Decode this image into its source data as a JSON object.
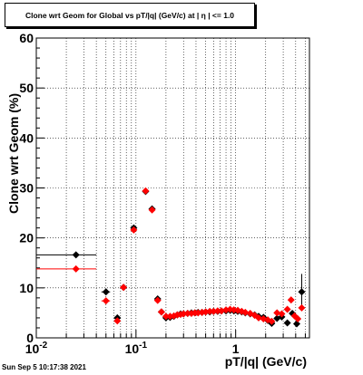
{
  "title": "Clone wrt Geom for Global vs pT/|q| (GeV/c) at |  η | <= 1.0",
  "timestamp": "Sun Sep  5 10:17:38 2021",
  "chart_data": {
    "type": "scatter",
    "title": "Clone wrt Geom for Global vs pT/|q| (GeV/c) at |  η | <= 1.0",
    "xlabel": "pT/|q| (GeV/c)",
    "ylabel": "Clone wrt Geom (%)",
    "xscale": "log",
    "xlim": [
      0.01,
      5.5
    ],
    "ylim": [
      0,
      60
    ],
    "grid": true,
    "x_tick_labels": [
      "10^-2",
      "10^-1",
      "1"
    ],
    "y_tick_labels": [
      "0",
      "10",
      "20",
      "30",
      "40",
      "50",
      "60"
    ],
    "series": [
      {
        "color": "#000000",
        "marker": "diamond",
        "points": [
          {
            "x": 0.025,
            "y": 16.6,
            "xerr": [
              0.01,
              0.04
            ]
          },
          {
            "x": 0.05,
            "y": 9.2,
            "xerr": [
              0.045,
              0.055
            ]
          },
          {
            "x": 0.065,
            "y": 4.0
          },
          {
            "x": 0.075,
            "y": 10.1
          },
          {
            "x": 0.095,
            "y": 22.0,
            "xerr": [
              0.09,
              0.1
            ]
          },
          {
            "x": 0.125,
            "y": 29.3
          },
          {
            "x": 0.145,
            "y": 25.8
          },
          {
            "x": 0.165,
            "y": 7.8
          },
          {
            "x": 0.18,
            "y": 5.2
          },
          {
            "x": 0.2,
            "y": 4.0
          },
          {
            "x": 0.22,
            "y": 4.1
          },
          {
            "x": 0.24,
            "y": 4.3
          },
          {
            "x": 0.26,
            "y": 4.6
          },
          {
            "x": 0.28,
            "y": 4.8
          },
          {
            "x": 0.3,
            "y": 4.8
          },
          {
            "x": 0.33,
            "y": 4.9
          },
          {
            "x": 0.36,
            "y": 5.0
          },
          {
            "x": 0.39,
            "y": 5.0
          },
          {
            "x": 0.42,
            "y": 5.1
          },
          {
            "x": 0.46,
            "y": 5.1
          },
          {
            "x": 0.5,
            "y": 5.2
          },
          {
            "x": 0.55,
            "y": 5.2
          },
          {
            "x": 0.6,
            "y": 5.3
          },
          {
            "x": 0.66,
            "y": 5.3
          },
          {
            "x": 0.72,
            "y": 5.4
          },
          {
            "x": 0.8,
            "y": 5.4
          },
          {
            "x": 0.88,
            "y": 5.5
          },
          {
            "x": 0.96,
            "y": 5.4
          },
          {
            "x": 1.05,
            "y": 5.3
          },
          {
            "x": 1.15,
            "y": 5.2
          },
          {
            "x": 1.25,
            "y": 5.0
          },
          {
            "x": 1.4,
            "y": 4.8
          },
          {
            "x": 1.55,
            "y": 4.6
          },
          {
            "x": 1.7,
            "y": 4.3
          },
          {
            "x": 1.9,
            "y": 4.1
          },
          {
            "x": 2.1,
            "y": 3.5
          },
          {
            "x": 2.3,
            "y": 2.9
          },
          {
            "x": 2.6,
            "y": 3.9
          },
          {
            "x": 2.9,
            "y": 4.2
          },
          {
            "x": 3.3,
            "y": 3.0
          },
          {
            "x": 3.7,
            "y": 4.9
          },
          {
            "x": 4.1,
            "y": 2.8
          },
          {
            "x": 4.6,
            "y": 9.2,
            "yerr": [
              5.5,
              12.8
            ]
          }
        ]
      },
      {
        "color": "#ff0000",
        "marker": "diamond",
        "points": [
          {
            "x": 0.025,
            "y": 13.8,
            "xerr": [
              0.01,
              0.04
            ]
          },
          {
            "x": 0.05,
            "y": 7.4,
            "xerr": [
              0.045,
              0.055
            ]
          },
          {
            "x": 0.065,
            "y": 3.4
          },
          {
            "x": 0.075,
            "y": 10.1
          },
          {
            "x": 0.095,
            "y": 21.6,
            "xerr": [
              0.09,
              0.1
            ]
          },
          {
            "x": 0.125,
            "y": 29.4
          },
          {
            "x": 0.145,
            "y": 25.6
          },
          {
            "x": 0.165,
            "y": 7.5
          },
          {
            "x": 0.18,
            "y": 5.2
          },
          {
            "x": 0.2,
            "y": 4.3
          },
          {
            "x": 0.22,
            "y": 4.3
          },
          {
            "x": 0.24,
            "y": 4.4
          },
          {
            "x": 0.26,
            "y": 4.6
          },
          {
            "x": 0.28,
            "y": 4.7
          },
          {
            "x": 0.3,
            "y": 4.8
          },
          {
            "x": 0.33,
            "y": 4.9
          },
          {
            "x": 0.36,
            "y": 4.9
          },
          {
            "x": 0.39,
            "y": 5.0
          },
          {
            "x": 0.42,
            "y": 5.0
          },
          {
            "x": 0.46,
            "y": 5.1
          },
          {
            "x": 0.5,
            "y": 5.2
          },
          {
            "x": 0.55,
            "y": 5.3
          },
          {
            "x": 0.6,
            "y": 5.3
          },
          {
            "x": 0.66,
            "y": 5.4
          },
          {
            "x": 0.72,
            "y": 5.4
          },
          {
            "x": 0.8,
            "y": 5.6
          },
          {
            "x": 0.88,
            "y": 5.7
          },
          {
            "x": 0.96,
            "y": 5.6
          },
          {
            "x": 1.05,
            "y": 5.5
          },
          {
            "x": 1.15,
            "y": 5.3
          },
          {
            "x": 1.25,
            "y": 5.1
          },
          {
            "x": 1.4,
            "y": 4.9
          },
          {
            "x": 1.55,
            "y": 4.5
          },
          {
            "x": 1.7,
            "y": 4.0
          },
          {
            "x": 1.9,
            "y": 3.8
          },
          {
            "x": 2.1,
            "y": 3.6
          },
          {
            "x": 2.3,
            "y": 3.3
          },
          {
            "x": 2.6,
            "y": 5.0
          },
          {
            "x": 2.9,
            "y": 4.8
          },
          {
            "x": 3.3,
            "y": 5.7
          },
          {
            "x": 3.6,
            "y": 7.6
          },
          {
            "x": 3.9,
            "y": 4.4
          },
          {
            "x": 4.2,
            "y": 3.8
          },
          {
            "x": 4.6,
            "y": 6.0
          }
        ]
      }
    ]
  }
}
